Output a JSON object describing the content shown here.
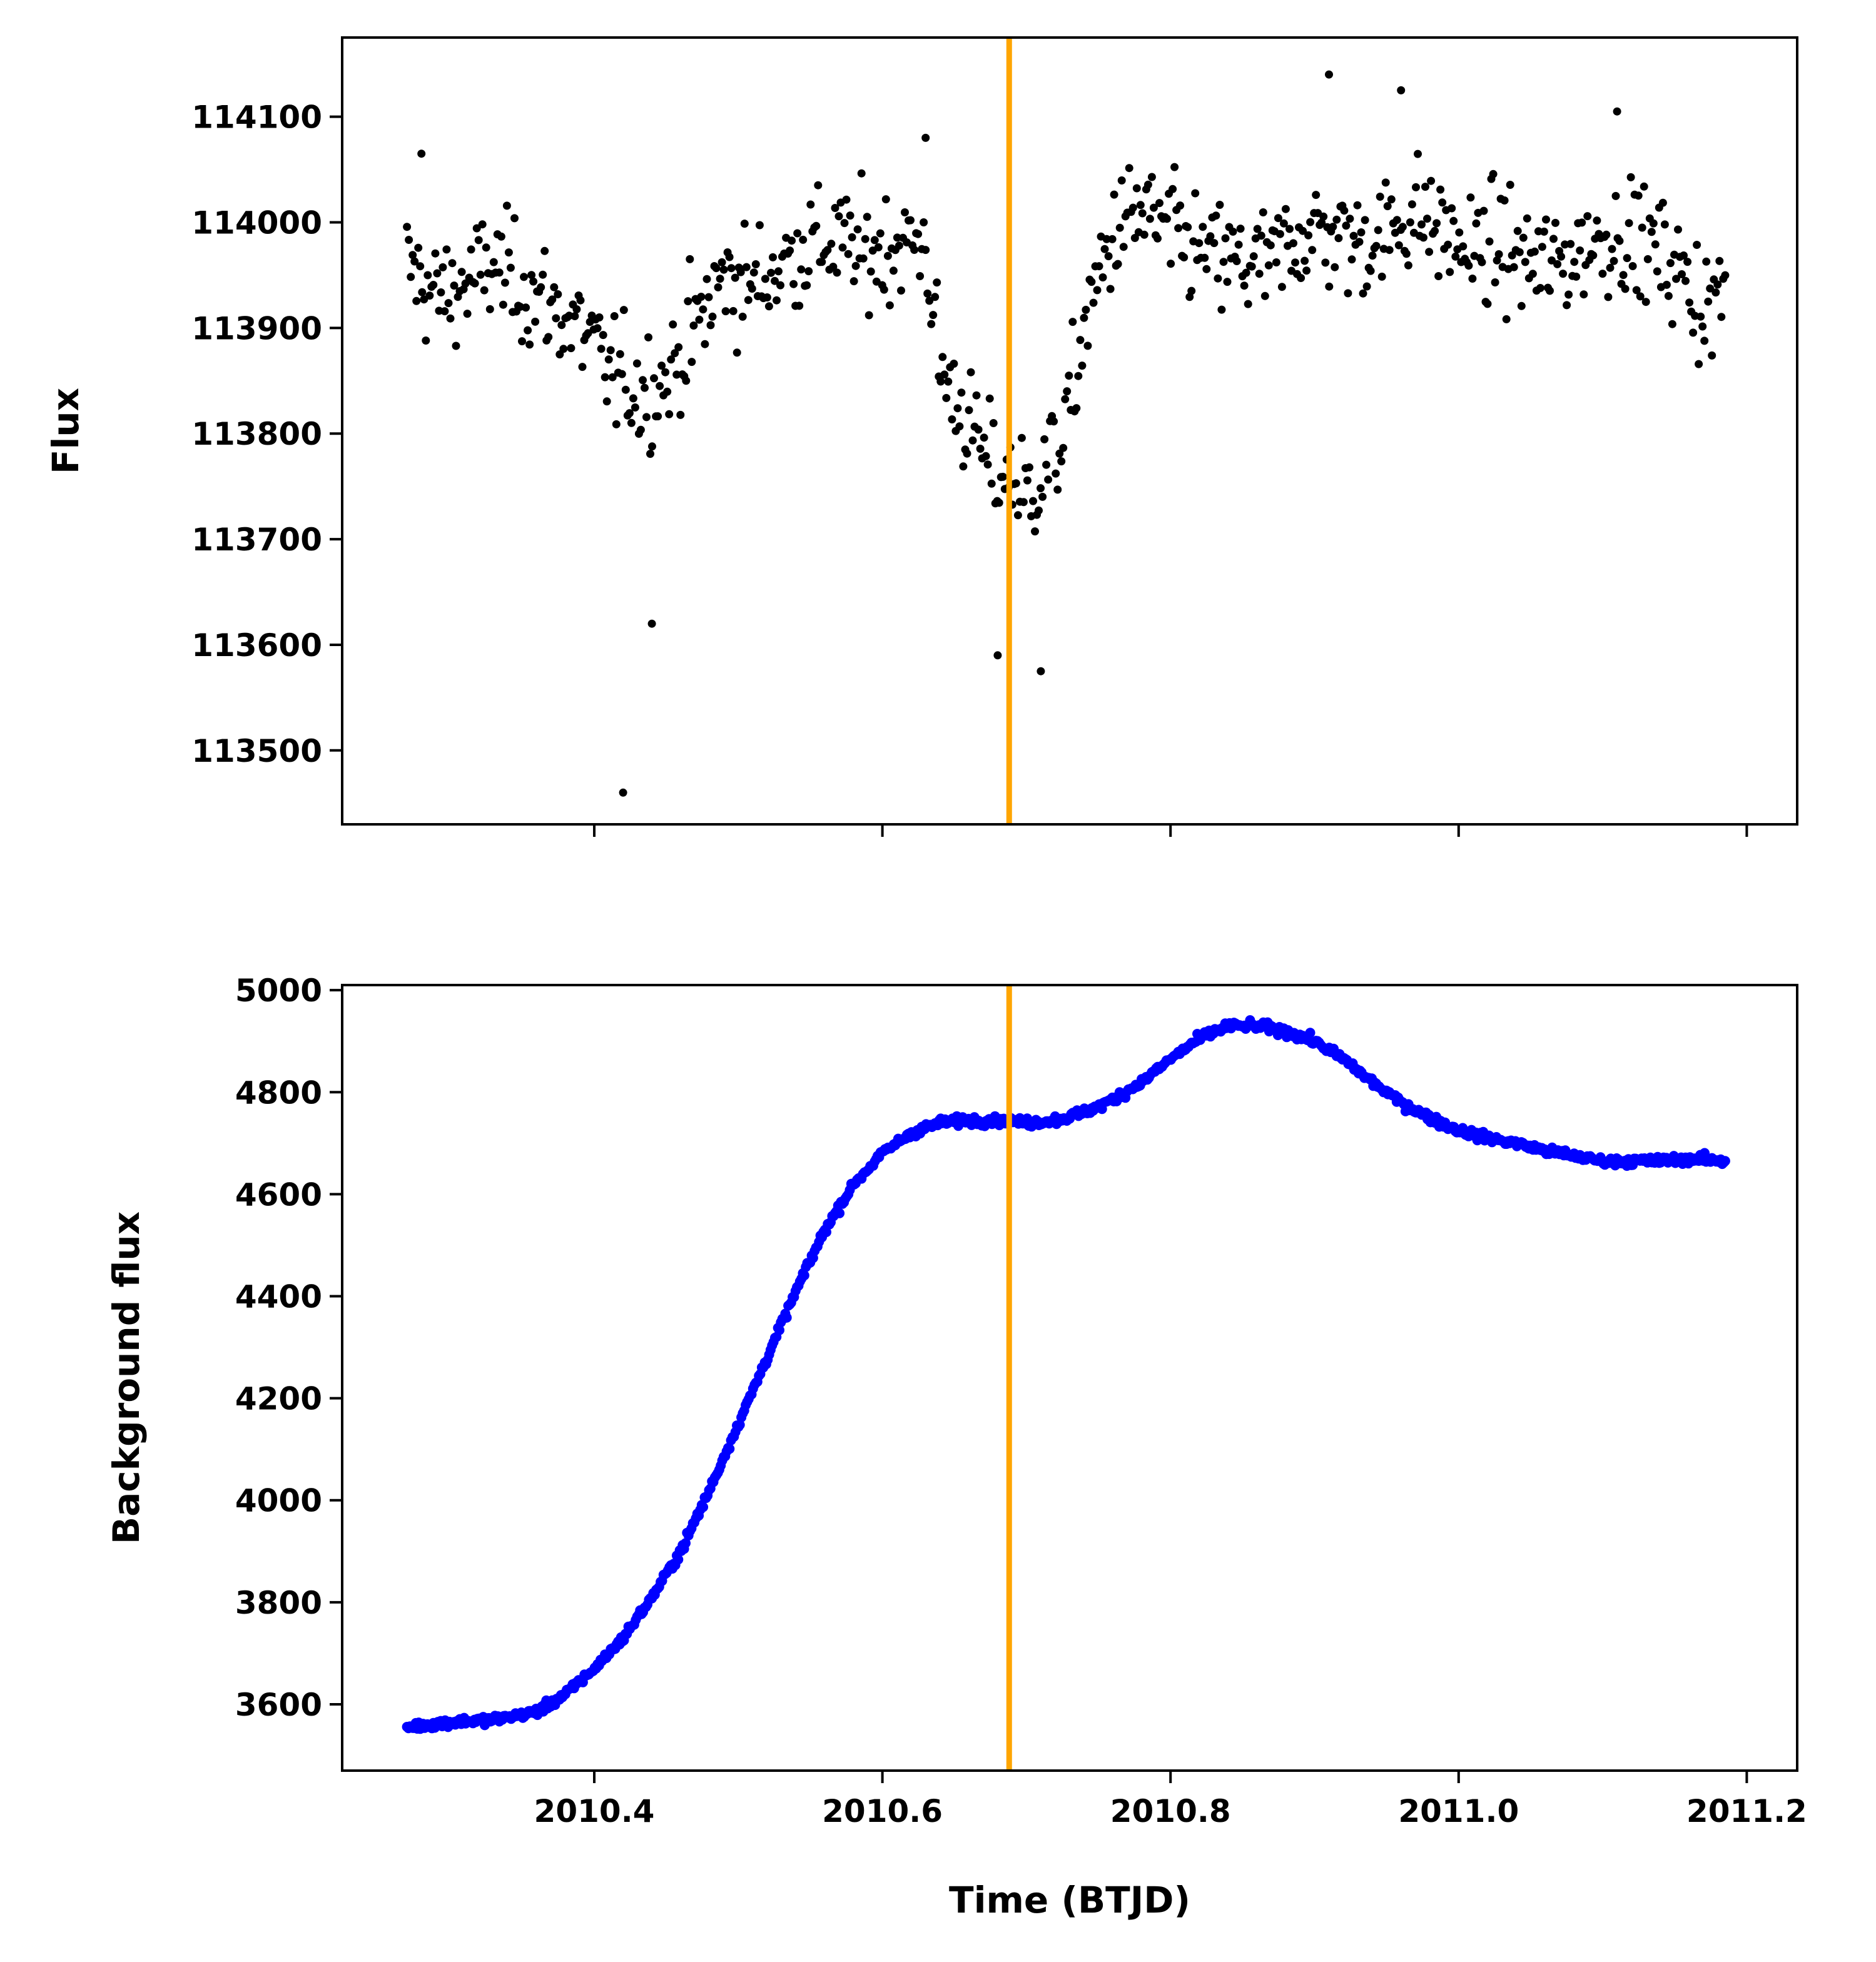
{
  "figure": {
    "xlabel": "Time (BTJD)",
    "vline_x": 2010.688,
    "vline_color": "#ffa500"
  },
  "chart_data": [
    {
      "type": "scatter",
      "title": "",
      "xlabel": "",
      "ylabel": "Flux",
      "xlim": [
        2010.225,
        2011.235
      ],
      "ylim": [
        113430,
        114175
      ],
      "xticks": [
        2010.4,
        2010.6,
        2010.8,
        2011.0,
        2011.2
      ],
      "xtick_labels_visible": false,
      "yticks": [
        113500,
        113600,
        113700,
        113800,
        113900,
        114000,
        114100
      ],
      "ytick_labels": [
        "113500",
        "113600",
        "113700",
        "113800",
        "113900",
        "114000",
        "114100"
      ],
      "marker_color": "#000000",
      "grid": false,
      "series": [
        {
          "x": [
            2010.27,
            2010.29,
            2010.31,
            2010.33,
            2010.35,
            2010.37,
            2010.39,
            2010.41,
            2010.43,
            2010.45,
            2010.47,
            2010.49,
            2010.51,
            2010.53,
            2010.55,
            2010.57,
            2010.59,
            2010.61,
            2010.63,
            2010.64,
            2010.66,
            2010.67,
            2010.68,
            2010.69,
            2010.7,
            2010.71,
            2010.72,
            2010.73,
            2010.74,
            2010.76,
            2010.78,
            2010.8,
            2010.82,
            2010.85,
            2010.87,
            2010.89,
            2010.91,
            2010.93,
            2010.95,
            2010.97,
            2010.99,
            2011.01,
            2011.03,
            2011.05,
            2011.07,
            2011.09,
            2011.11,
            2011.13,
            2011.15,
            2011.17,
            2011.185
          ],
          "y": [
            113960,
            113930,
            113940,
            113960,
            113940,
            113920,
            113900,
            113860,
            113840,
            113850,
            113900,
            113950,
            113940,
            113960,
            113980,
            113980,
            113970,
            113980,
            113980,
            113860,
            113810,
            113780,
            113760,
            113760,
            113740,
            113760,
            113780,
            113820,
            113900,
            113990,
            114010,
            113990,
            113970,
            113960,
            113960,
            113990,
            113990,
            113980,
            113990,
            114010,
            113990,
            113970,
            113980,
            113960,
            113960,
            113980,
            113990,
            113980,
            113960,
            113920,
            113930
          ]
        }
      ],
      "outliers": [
        {
          "x": 2010.42,
          "y": 113460
        },
        {
          "x": 2010.44,
          "y": 113620
        },
        {
          "x": 2010.68,
          "y": 113590
        },
        {
          "x": 2010.71,
          "y": 113575
        },
        {
          "x": 2010.91,
          "y": 114140
        },
        {
          "x": 2010.96,
          "y": 114125
        },
        {
          "x": 2011.11,
          "y": 114105
        },
        {
          "x": 2010.63,
          "y": 114080
        },
        {
          "x": 2010.28,
          "y": 114065
        }
      ]
    },
    {
      "type": "scatter",
      "title": "",
      "xlabel": "Time (BTJD)",
      "ylabel": "Background flux",
      "xlim": [
        2010.225,
        2011.235
      ],
      "ylim": [
        3470,
        5010
      ],
      "xticks": [
        2010.4,
        2010.6,
        2010.8,
        2011.0,
        2011.2
      ],
      "xtick_labels": [
        "2010.4",
        "2010.6",
        "2010.8",
        "2011.0",
        "2011.2"
      ],
      "yticks": [
        3600,
        3800,
        4000,
        4200,
        4400,
        4600,
        4800,
        5000
      ],
      "ytick_labels": [
        "3600",
        "3800",
        "4000",
        "4200",
        "4400",
        "4600",
        "4800",
        "5000"
      ],
      "marker_color": "#0000ff",
      "grid": false,
      "series": [
        {
          "x": [
            2010.27,
            2010.3,
            2010.33,
            2010.36,
            2010.38,
            2010.4,
            2010.42,
            2010.44,
            2010.46,
            2010.48,
            2010.5,
            2010.52,
            2010.54,
            2010.56,
            2010.58,
            2010.6,
            2010.62,
            2010.64,
            2010.66,
            2010.68,
            2010.7,
            2010.72,
            2010.74,
            2010.76,
            2010.78,
            2010.8,
            2010.82,
            2010.84,
            2010.86,
            2010.88,
            2010.9,
            2010.92,
            2010.94,
            2010.96,
            2010.98,
            2011.0,
            2011.02,
            2011.04,
            2011.06,
            2011.08,
            2011.1,
            2011.12,
            2011.14,
            2011.16,
            2011.185
          ],
          "y": [
            3555,
            3565,
            3570,
            3585,
            3620,
            3670,
            3730,
            3810,
            3900,
            4020,
            4150,
            4280,
            4410,
            4530,
            4620,
            4680,
            4720,
            4740,
            4745,
            4745,
            4740,
            4745,
            4760,
            4785,
            4820,
            4865,
            4905,
            4930,
            4930,
            4920,
            4900,
            4865,
            4820,
            4780,
            4750,
            4725,
            4710,
            4700,
            4685,
            4675,
            4665,
            4665,
            4665,
            4670,
            4665
          ]
        }
      ]
    }
  ]
}
